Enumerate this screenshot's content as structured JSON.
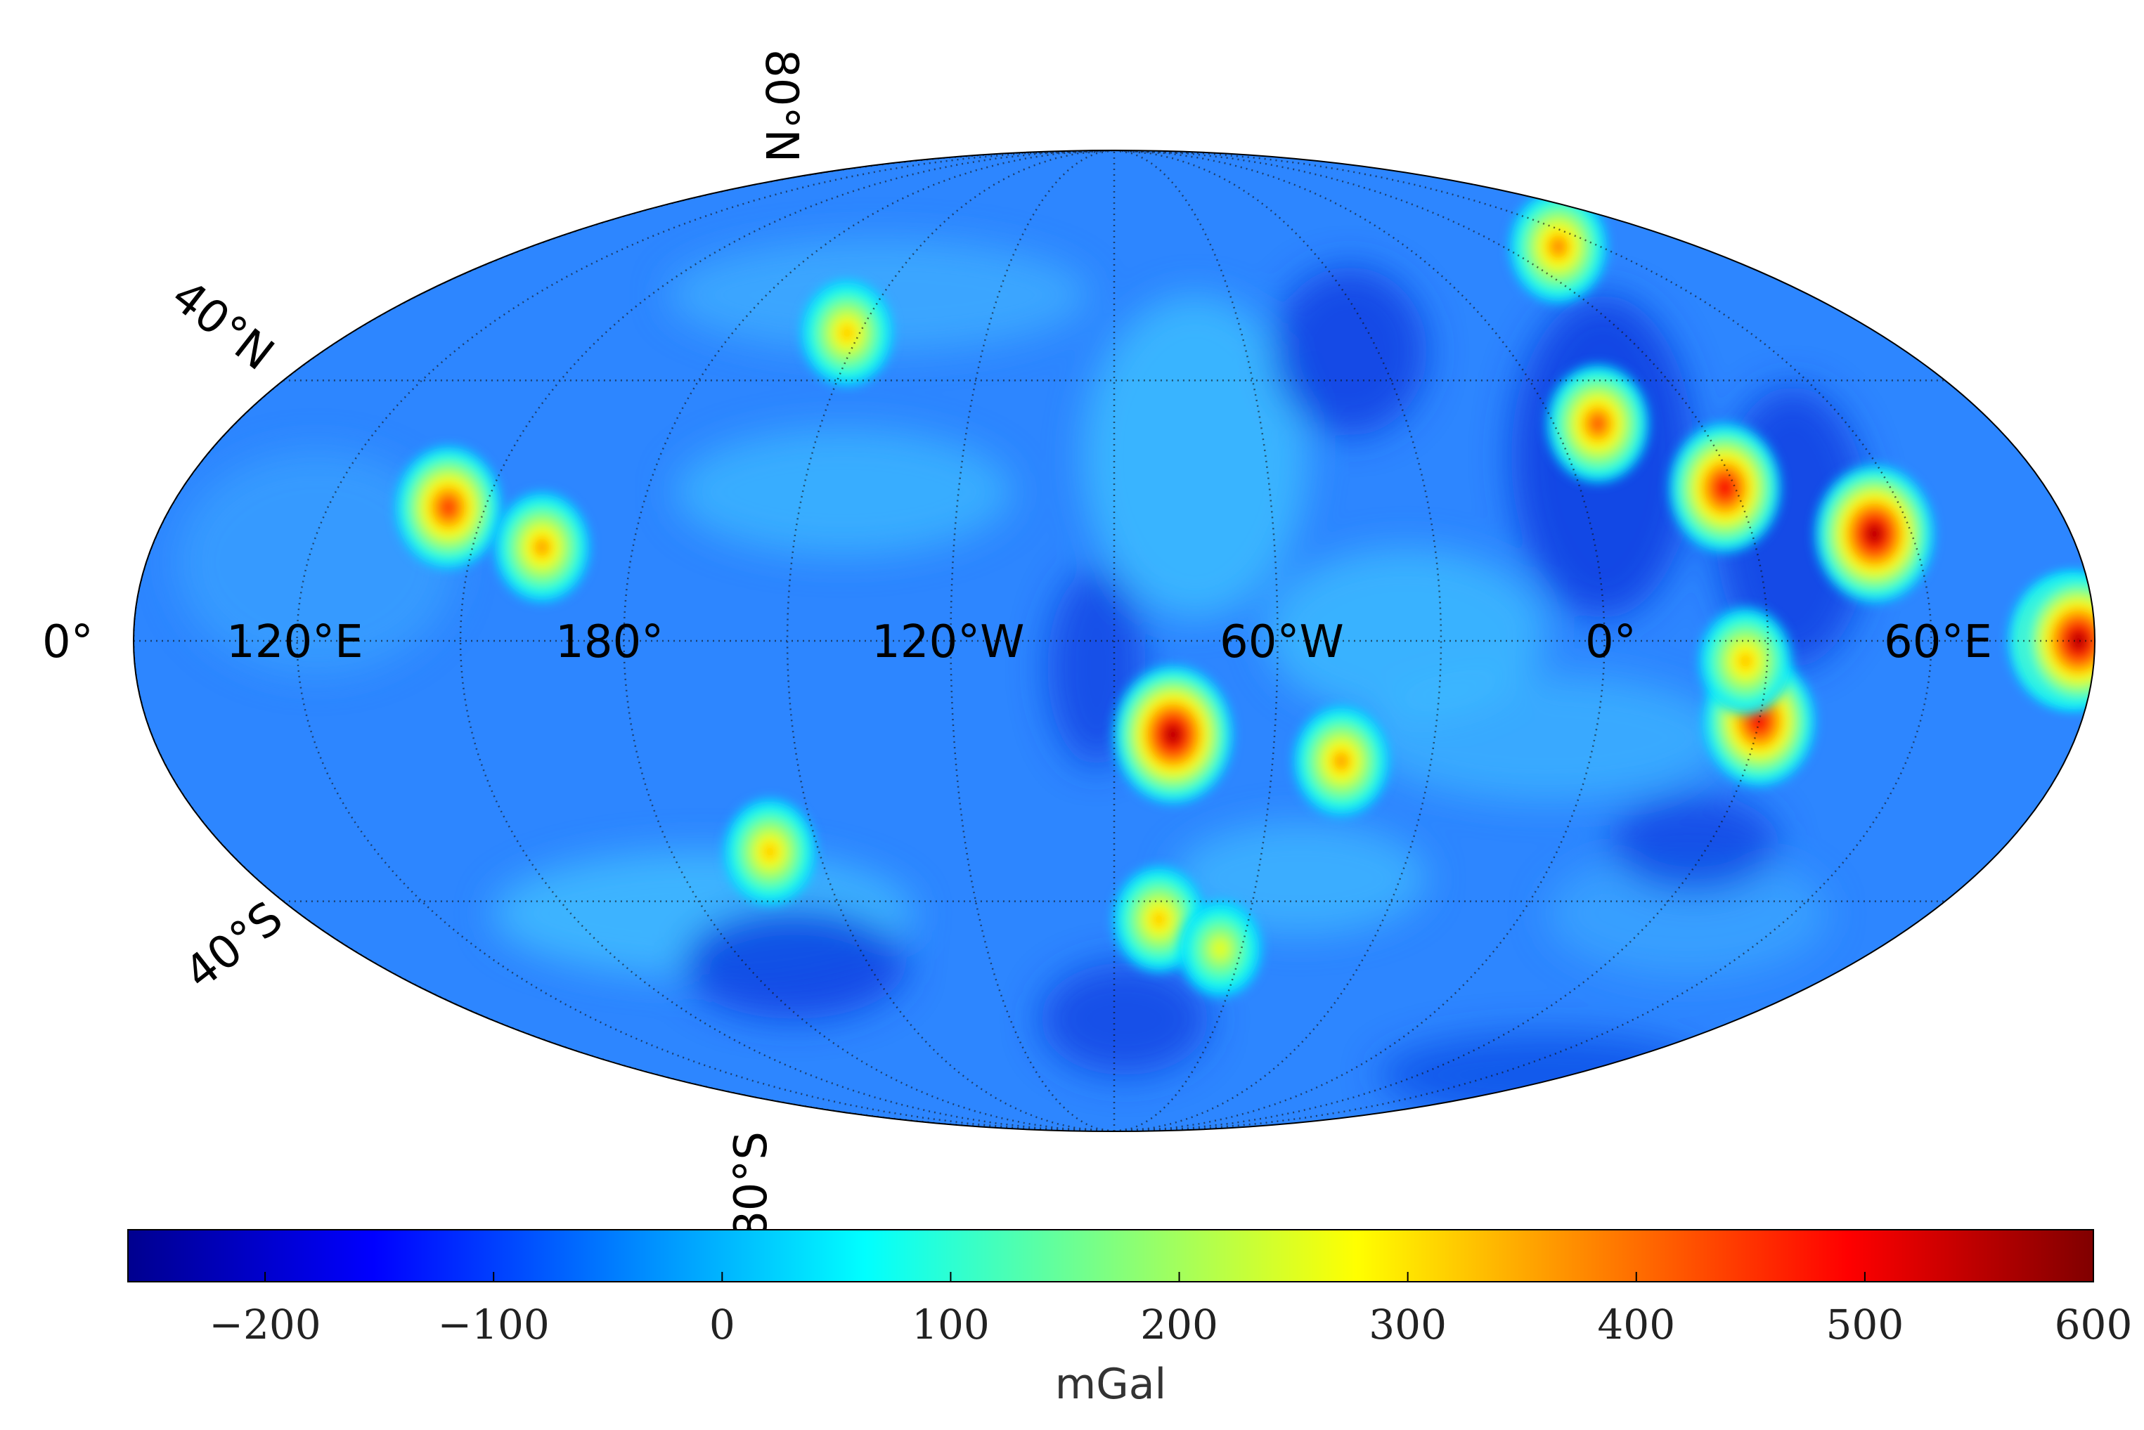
{
  "map": {
    "projection": "Mollweide",
    "graticule": "dotted",
    "parallel_labels": [
      "80°N",
      "40°N",
      "0°",
      "40°S",
      "80°S"
    ],
    "meridian_labels": [
      "120°E",
      "180°",
      "120°W",
      "60°W",
      "0°",
      "60°E"
    ],
    "background_color": "#2d86ff",
    "anomalies": [
      {
        "lon": -74,
        "lat": -14,
        "value": 560
      },
      {
        "lon": 33,
        "lat": 23,
        "value": 500
      },
      {
        "lon": 58,
        "lat": 16,
        "value": 560
      },
      {
        "lon": 14,
        "lat": 33,
        "value": 420
      },
      {
        "lon": 35,
        "lat": -12,
        "value": 500
      },
      {
        "lon": 31,
        "lat": -3,
        "value": 340
      },
      {
        "lon": -42,
        "lat": -18,
        "value": 360
      },
      {
        "lon": -75,
        "lat": -43,
        "value": 330
      },
      {
        "lon": 148,
        "lat": 20,
        "value": 450
      },
      {
        "lon": 168,
        "lat": 14,
        "value": 360
      },
      {
        "lon": -148,
        "lat": 48,
        "value": 330
      },
      {
        "lon": -155,
        "lat": -32,
        "value": 330
      },
      {
        "lon": 90,
        "lat": 0,
        "value": 560
      },
      {
        "lon": 92,
        "lat": 0,
        "value": 560
      },
      {
        "lon": 52,
        "lat": 64,
        "value": 380
      },
      {
        "lon": -60,
        "lat": -48,
        "value": 260
      }
    ]
  },
  "colorbar": {
    "colormap": "jet",
    "min": -260,
    "max": 600,
    "ticks": [
      "−200",
      "−100",
      "0",
      "100",
      "200",
      "300",
      "400",
      "500",
      "600"
    ],
    "tick_values": [
      -200,
      -100,
      0,
      100,
      200,
      300,
      400,
      500,
      600
    ],
    "label": "mGal"
  }
}
